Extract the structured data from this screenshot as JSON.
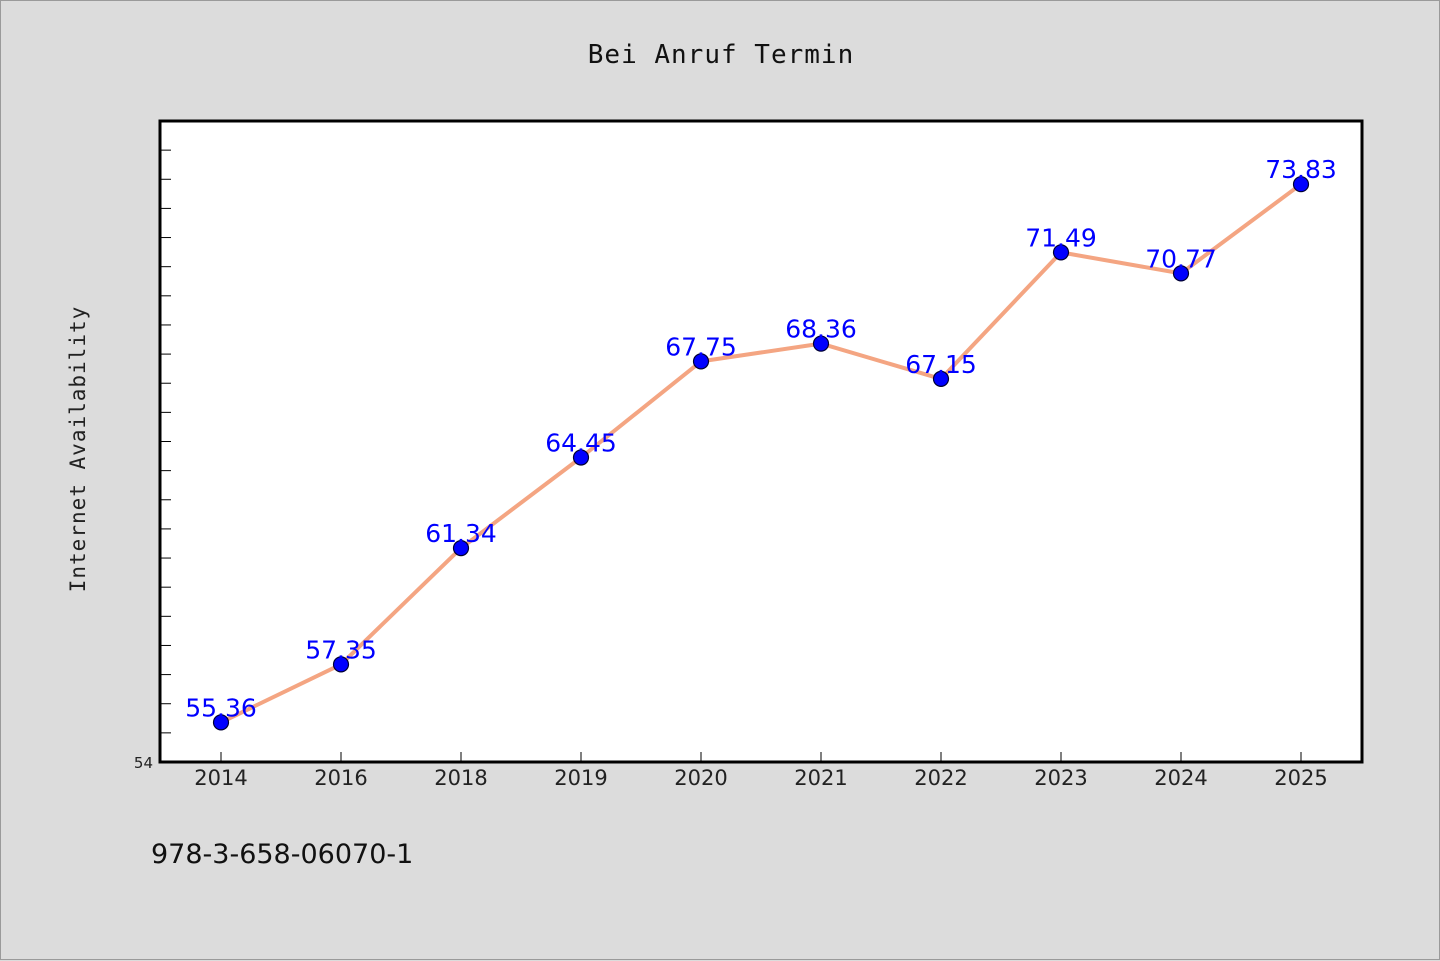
{
  "chart_data": {
    "type": "line",
    "title": "Bei Anruf Termin",
    "xlabel": "",
    "ylabel": "Internet Availability",
    "categories": [
      "2014",
      "2016",
      "2018",
      "2019",
      "2020",
      "2021",
      "2022",
      "2023",
      "2024",
      "2025"
    ],
    "series": [
      {
        "values": [
          55.36,
          57.35,
          61.34,
          64.45,
          67.75,
          68.36,
          67.15,
          71.49,
          70.77,
          73.83
        ]
      }
    ],
    "data_labels": [
      "55.36",
      "57.35",
      "61.34",
      "64.45",
      "67.75",
      "68.36",
      "67.15",
      "71.49",
      "70.77",
      "73.83"
    ],
    "ylim": [
      54,
      76
    ],
    "y_tick_label": "54",
    "grid": false,
    "legend": "none",
    "line_color": "#f4a582",
    "marker_color": "#0000ff",
    "label_color": "#0000ff"
  },
  "footnote": "978-3-658-06070-1"
}
